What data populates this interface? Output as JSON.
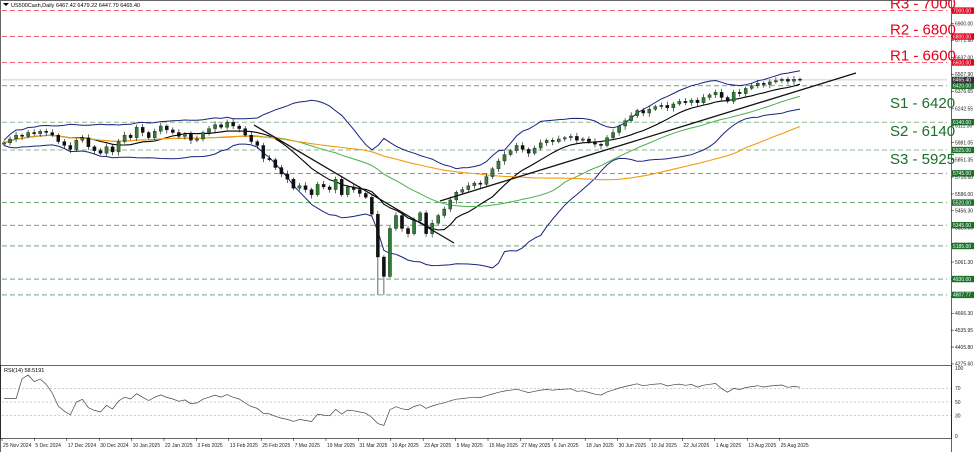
{
  "chart_data": {
    "type": "candlestick",
    "symbol": "US500Cash,Daily",
    "ohlc_header": "6467.42 6479.22 6447.70 6465.40",
    "price_axis": {
      "min": 4275,
      "max": 7100,
      "ticks": [
        "7000.00",
        "6900.00",
        "6800.00",
        "6771.90",
        "6637.00",
        "6507.90",
        "6376.65",
        "6242.55",
        "6111.30",
        "5981.05",
        "5851.35",
        "5716.60",
        "5586.00",
        "5456.30",
        "5326.00",
        "5196.30",
        "5061.30",
        "4931.05",
        "4796.50",
        "4666.30",
        "4535.95",
        "4405.80",
        "4275.60"
      ]
    },
    "x_labels": [
      "25 Nov 2024",
      "5 Dec 2024",
      "17 Dec 2024",
      "30 Dec 2024",
      "10 Jan 2025",
      "22 Jan 2025",
      "3 Feb 2025",
      "13 Feb 2025",
      "25 Feb 2025",
      "7 Mar 2025",
      "19 Mar 2025",
      "31 Mar 2025",
      "10 Apr 2025",
      "23 Apr 2025",
      "5 May 2025",
      "15 May 2025",
      "27 May 2025",
      "6 Jun 2025",
      "18 Jun 2025",
      "30 Jun 2025",
      "10 Jul 2025",
      "22 Jul 2025",
      "1 Aug 2025",
      "13 Aug 2025",
      "25 Aug 2025"
    ],
    "resistance": [
      {
        "label": "R3 - 7000",
        "value": 7000,
        "tag": "7000.00"
      },
      {
        "label": "R2 - 6800",
        "value": 6800,
        "tag": "6800.00"
      },
      {
        "label": "R1 - 6600",
        "value": 6600,
        "tag": "6600.00"
      }
    ],
    "support": [
      {
        "label": "S1 - 6420",
        "value": 6420,
        "tag": "6420.00"
      },
      {
        "label": "S2 - 6140",
        "value": 6140,
        "tag": "6140.00"
      },
      {
        "label": "S3 - 5925",
        "value": 5925,
        "tag": "5925.00"
      }
    ],
    "extra_levels": [
      {
        "value": 5745,
        "tag": "5745.00"
      },
      {
        "value": 5520,
        "tag": "5520.00"
      },
      {
        "value": 5345,
        "tag": "5345.00"
      },
      {
        "value": 5185,
        "tag": "5185.00"
      },
      {
        "value": 4930,
        "tag": "4930.00"
      },
      {
        "value": 4807.77,
        "tag": "4807.77"
      }
    ],
    "last_price": {
      "value": 6465.4,
      "tag": "6465.40"
    },
    "close_series": [
      5980,
      6010,
      6040,
      6030,
      6060,
      6050,
      6070,
      6060,
      6040,
      5990,
      5960,
      5930,
      6000,
      6020,
      5950,
      5920,
      5900,
      5950,
      5910,
      5990,
      6040,
      6020,
      6100,
      6060,
      6020,
      6070,
      6110,
      6080,
      6060,
      6030,
      6050,
      6000,
      6010,
      6060,
      6090,
      6120,
      6100,
      6140,
      6110,
      6090,
      6040,
      5990,
      5960,
      5860,
      5850,
      5790,
      5740,
      5700,
      5630,
      5650,
      5620,
      5580,
      5660,
      5640,
      5620,
      5700,
      5580,
      5640,
      5620,
      5590,
      5560,
      5430,
      5100,
      4950,
      5320,
      5420,
      5320,
      5280,
      5380,
      5440,
      5280,
      5360,
      5420,
      5470,
      5540,
      5600,
      5620,
      5650,
      5670,
      5660,
      5720,
      5780,
      5840,
      5890,
      5920,
      5960,
      5930,
      5900,
      5940,
      5980,
      6000,
      5990,
      6010,
      6020,
      6030,
      6000,
      6010,
      5990,
      5970,
      5960,
      6020,
      6060,
      6110,
      6150,
      6190,
      6230,
      6210,
      6240,
      6260,
      6270,
      6250,
      6280,
      6300,
      6290,
      6310,
      6290,
      6330,
      6350,
      6370,
      6330,
      6300,
      6370,
      6360,
      6400,
      6420,
      6440,
      6430,
      6450,
      6460,
      6470,
      6455,
      6470,
      6465
    ],
    "indicator": {
      "name": "RSI(14) 58.5191",
      "ylim": [
        0,
        100
      ],
      "levels": [
        70,
        50,
        30
      ],
      "tick_labels": [
        "100",
        "70",
        "50",
        "30",
        "0"
      ]
    }
  }
}
